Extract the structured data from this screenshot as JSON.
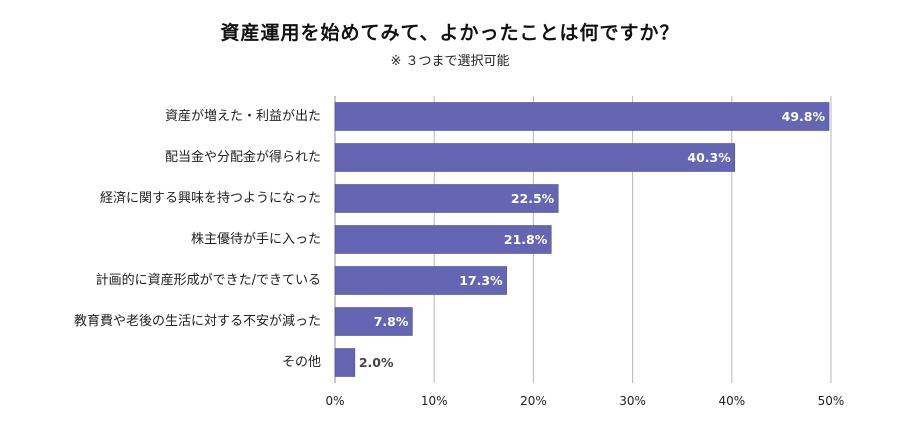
{
  "header": {
    "title": "資産運用を始めてみて、よかったことは何ですか？",
    "subtitle": "※ ３つまで選択可能"
  },
  "colors": {
    "bar": "#6466b4",
    "bar_edge": "#4e4f9a",
    "grid": "#b8b8b8",
    "label_inside": "#ffffff",
    "label_outside": "#444444"
  },
  "chart_data": {
    "type": "bar",
    "orientation": "horizontal",
    "categories": [
      "資産が増えた・利益が出た",
      "配当金や分配金が得られた",
      "経済に関する興味を持つようになった",
      "株主優待が手に入った",
      "計画的に資産形成ができた/できている",
      "教育費や老後の生活に対する不安が減った",
      "その他"
    ],
    "values": [
      49.8,
      40.3,
      22.5,
      21.8,
      17.3,
      7.8,
      2.0
    ],
    "value_labels": [
      "49.8%",
      "40.3%",
      "22.5%",
      "21.8%",
      "17.3%",
      "7.8%",
      "2.0%"
    ],
    "xlim": [
      0,
      50
    ],
    "xticks": [
      0,
      10,
      20,
      30,
      40,
      50
    ],
    "xtick_labels": [
      "0%",
      "10%",
      "20%",
      "30%",
      "40%",
      "50%"
    ],
    "grid": true,
    "legend": false
  }
}
